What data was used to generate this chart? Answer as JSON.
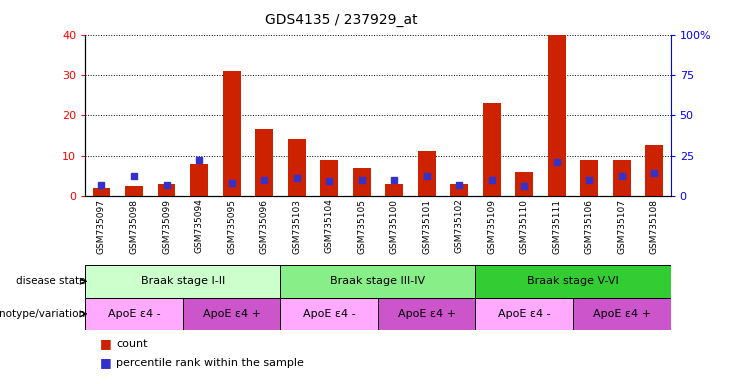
{
  "title": "GDS4135 / 237929_at",
  "samples": [
    "GSM735097",
    "GSM735098",
    "GSM735099",
    "GSM735094",
    "GSM735095",
    "GSM735096",
    "GSM735103",
    "GSM735104",
    "GSM735105",
    "GSM735100",
    "GSM735101",
    "GSM735102",
    "GSM735109",
    "GSM735110",
    "GSM735111",
    "GSM735106",
    "GSM735107",
    "GSM735108"
  ],
  "count_values": [
    2,
    2.5,
    3,
    8,
    31,
    16.5,
    14,
    9,
    7,
    3,
    11,
    3,
    23,
    6,
    40,
    9,
    9,
    12.5
  ],
  "percentile_values": [
    7,
    12,
    7,
    22,
    8,
    10,
    11,
    9.5,
    10,
    10,
    12,
    7,
    10,
    6,
    21,
    10,
    12,
    14
  ],
  "left_ylim": [
    0,
    40
  ],
  "right_ylim": [
    0,
    100
  ],
  "left_yticks": [
    0,
    10,
    20,
    30,
    40
  ],
  "right_yticks": [
    0,
    25,
    50,
    75,
    100
  ],
  "right_yticklabels": [
    "0",
    "25",
    "50",
    "75",
    "100%"
  ],
  "bar_color": "#cc2200",
  "percentile_color": "#3333cc",
  "disease_state_label": "disease state",
  "genotype_label": "genotype/variation",
  "braak_groups": [
    {
      "label": "Braak stage I-II",
      "start": 0,
      "end": 6,
      "color": "#ccffcc"
    },
    {
      "label": "Braak stage III-IV",
      "start": 6,
      "end": 12,
      "color": "#88ee88"
    },
    {
      "label": "Braak stage V-VI",
      "start": 12,
      "end": 18,
      "color": "#33cc33"
    }
  ],
  "genotype_groups": [
    {
      "label": "ApoE ε4 -",
      "start": 0,
      "end": 3,
      "color": "#ffaaff"
    },
    {
      "label": "ApoE ε4 +",
      "start": 3,
      "end": 6,
      "color": "#cc55cc"
    },
    {
      "label": "ApoE ε4 -",
      "start": 6,
      "end": 9,
      "color": "#ffaaff"
    },
    {
      "label": "ApoE ε4 +",
      "start": 9,
      "end": 12,
      "color": "#cc55cc"
    },
    {
      "label": "ApoE ε4 -",
      "start": 12,
      "end": 15,
      "color": "#ffaaff"
    },
    {
      "label": "ApoE ε4 +",
      "start": 15,
      "end": 18,
      "color": "#cc55cc"
    }
  ],
  "legend_count_label": "count",
  "legend_percentile_label": "percentile rank within the sample",
  "bar_width": 0.55
}
